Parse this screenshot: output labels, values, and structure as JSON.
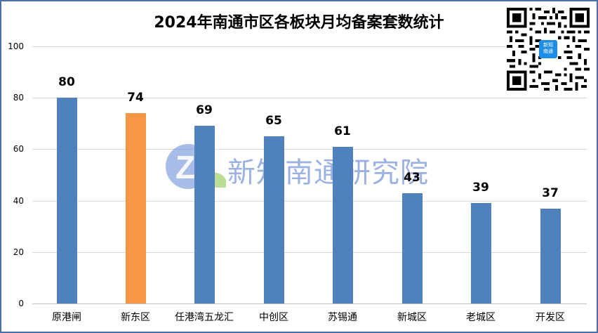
{
  "chart_data": {
    "type": "bar",
    "title": "2024年南通市区各板块月均备案套数统计",
    "categories": [
      "原港闸",
      "新东区",
      "任港湾五龙汇",
      "中创区",
      "苏锡通",
      "新城区",
      "老城区",
      "开发区"
    ],
    "values": [
      80,
      74,
      69,
      65,
      61,
      43,
      39,
      37
    ],
    "highlight_index": 1,
    "xlabel": "",
    "ylabel": "",
    "ylim": [
      0,
      100
    ],
    "yticks": [
      0,
      20,
      40,
      60,
      80,
      100
    ],
    "grid": true,
    "legend": "none",
    "data_labels": true,
    "colors": {
      "default": "#4f81bd",
      "highlight": "#f79646"
    }
  },
  "header": {
    "title": "2024年南通市区各板块月均备案套数统计"
  },
  "yaxis": {
    "ticks": [
      "100",
      "80",
      "60",
      "40",
      "20",
      "0"
    ]
  },
  "bars": [
    {
      "label": "原港闸",
      "value": "80"
    },
    {
      "label": "新东区",
      "value": "74"
    },
    {
      "label": "任港湾五龙汇",
      "value": "69"
    },
    {
      "label": "中创区",
      "value": "65"
    },
    {
      "label": "苏锡通",
      "value": "61"
    },
    {
      "label": "新城区",
      "value": "43"
    },
    {
      "label": "老城区",
      "value": "39"
    },
    {
      "label": "开发区",
      "value": "37"
    }
  ],
  "watermark": {
    "logo_letter": "Z",
    "text": "新知南通研究院"
  },
  "qr": {
    "center_line1": "新知",
    "center_line2": "南通"
  }
}
